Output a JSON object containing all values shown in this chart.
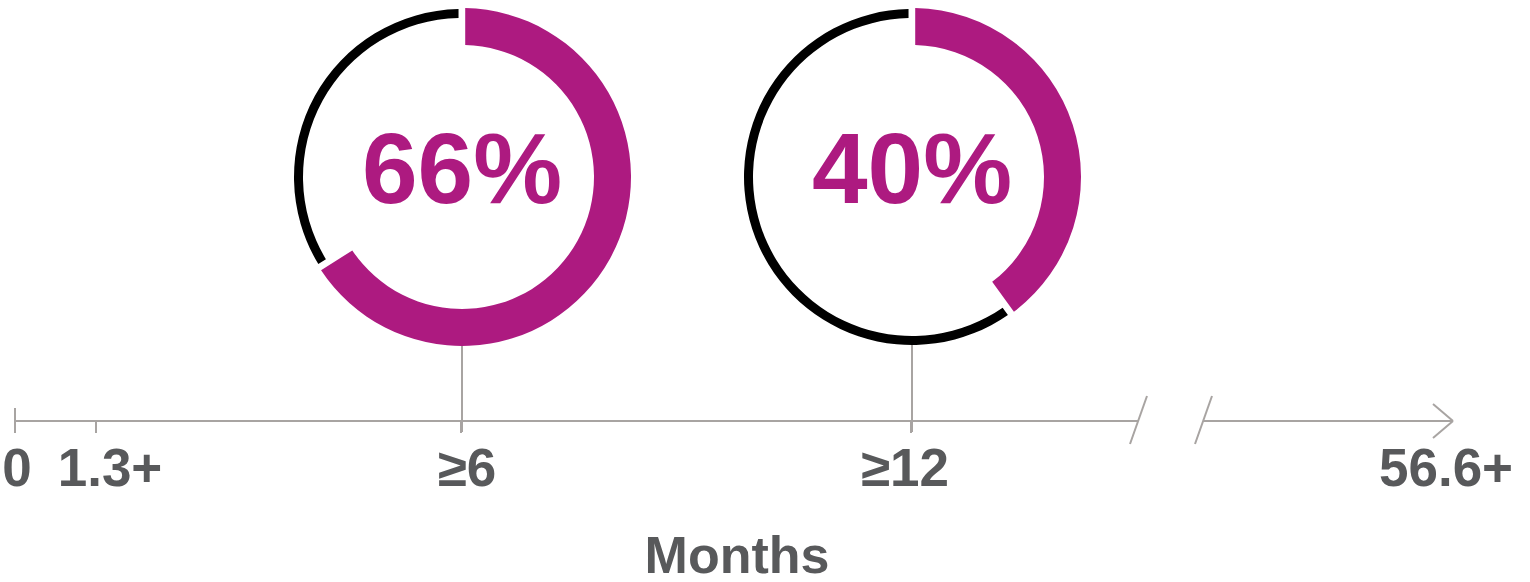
{
  "chart_data": [
    {
      "type": "donut",
      "categories": [
        null,
        null
      ],
      "values": [
        66,
        34
      ],
      "colors": [
        "#ad1a80",
        "#000000"
      ],
      "value_labels": [
        "66%",
        null
      ]
    },
    {
      "type": "donut",
      "categories": [
        null,
        null
      ],
      "values": [
        40,
        60
      ],
      "colors": [
        "#ad1a80",
        "#000000"
      ],
      "value_labels": [
        "40%",
        null
      ]
    },
    {
      "type": "other",
      "xlabel": "Months",
      "annotations": [
        "0",
        "1.3+",
        "≥6",
        "≥12",
        "56.6+"
      ]
    }
  ]
}
